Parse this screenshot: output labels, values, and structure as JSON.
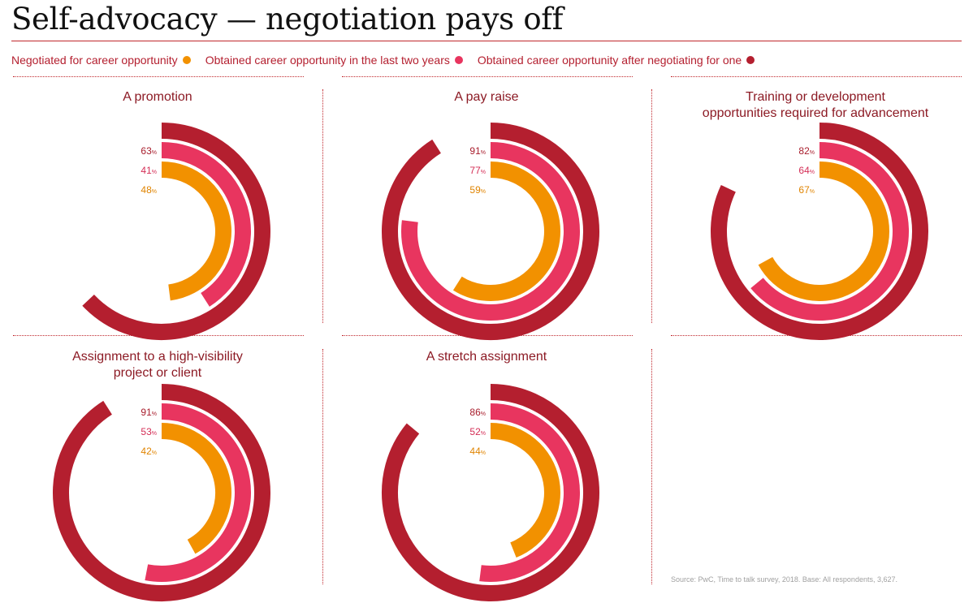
{
  "title": "Self-advocacy — negotiation pays off",
  "legend": [
    {
      "label": "Negotiated for career opportunity",
      "color": "#f29100"
    },
    {
      "label": "Obtained career opportunity in the last two years",
      "color": "#e8355f"
    },
    {
      "label": "Obtained career opportunity after negotiating for one",
      "color": "#b41f2f"
    }
  ],
  "percent_sign": "%",
  "chart_data": {
    "type": "radial-bar",
    "series": [
      {
        "name": "Negotiated for career opportunity",
        "color": "#f29100"
      },
      {
        "name": "Obtained career opportunity in the last two years",
        "color": "#e8355f"
      },
      {
        "name": "Obtained career opportunity after negotiating for one",
        "color": "#b41f2f"
      }
    ],
    "panels": [
      {
        "title": [
          "A promotion"
        ],
        "values": [
          48,
          41,
          63
        ]
      },
      {
        "title": [
          "A pay raise"
        ],
        "values": [
          59,
          77,
          91
        ]
      },
      {
        "title": [
          "Training or development",
          "opportunities required for advancement"
        ],
        "values": [
          67,
          64,
          82
        ]
      },
      {
        "title": [
          "Assignment to a high-visibility",
          "project or client"
        ],
        "values": [
          42,
          53,
          91
        ]
      },
      {
        "title": [
          "A stretch assignment"
        ],
        "values": [
          44,
          52,
          86
        ]
      }
    ]
  },
  "source": "Source: PwC, Time to talk survey, 2018. Base: All respondents, 3,627."
}
